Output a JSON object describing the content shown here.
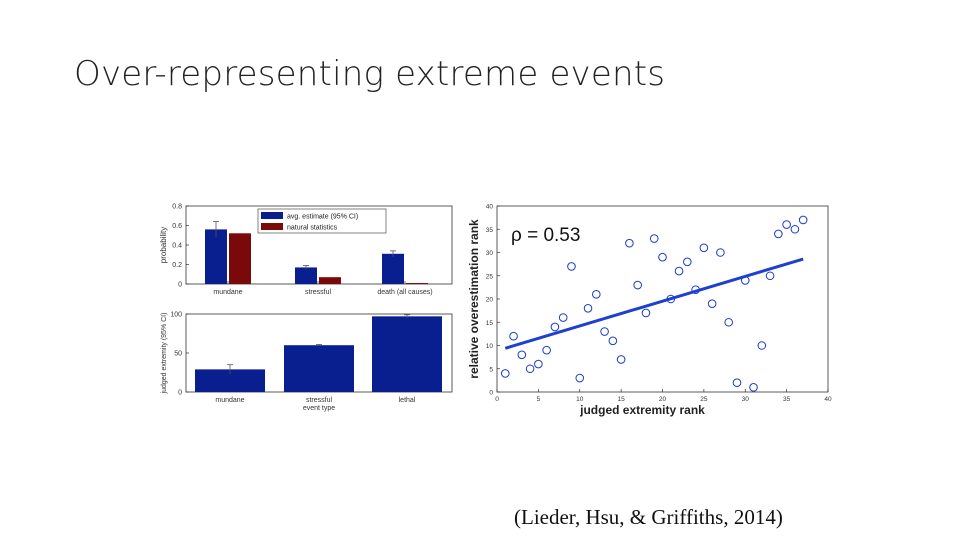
{
  "slide": {
    "title": "Over-representing extreme events",
    "citation": "(Lieder, Hsu, & Griffiths, 2014)"
  },
  "colors": {
    "blue": "#0a1f8f",
    "red": "#7a0a0a",
    "scatter": "#1a3ccc",
    "fit": "#1f3fd0"
  },
  "chart_data": [
    {
      "type": "bar",
      "categories": [
        "mundane",
        "stressful",
        "death (all causes)"
      ],
      "series": [
        {
          "name": "avg. estimate (95% CI)",
          "values": [
            0.56,
            0.17,
            0.31
          ],
          "ci": [
            0.08,
            0.02,
            0.03
          ]
        },
        {
          "name": "natural statistics",
          "values": [
            0.52,
            0.07,
            0.01
          ]
        }
      ],
      "ylabel": "probability",
      "ylim": [
        0,
        0.8
      ],
      "yticks": [
        "0",
        "0.2",
        "0.4",
        "0.6",
        "0.8"
      ],
      "legend": "top-right"
    },
    {
      "type": "bar",
      "categories": [
        "mundane",
        "stressful",
        "lethal"
      ],
      "series": [
        {
          "values": [
            29,
            60,
            97
          ],
          "ci": [
            6,
            1,
            2
          ]
        }
      ],
      "xlabel": "event type",
      "ylabel": "judged extremity (95% CI)",
      "ylim": [
        0,
        100
      ],
      "yticks": [
        "0",
        "50",
        "100"
      ]
    },
    {
      "type": "scatter",
      "annotation": "ρ = 0.53",
      "xlabel": "judged extremity rank",
      "ylabel": "relative overestimation rank",
      "xlim": [
        0,
        40
      ],
      "ylim": [
        0,
        40
      ],
      "xticks": [
        "0",
        "5",
        "10",
        "15",
        "20",
        "25",
        "30",
        "35",
        "40"
      ],
      "yticks": [
        "0",
        "5",
        "10",
        "15",
        "20",
        "25",
        "30",
        "35",
        "40"
      ],
      "points": [
        [
          1,
          4
        ],
        [
          2,
          12
        ],
        [
          3,
          8
        ],
        [
          4,
          5
        ],
        [
          5,
          6
        ],
        [
          6,
          9
        ],
        [
          7,
          14
        ],
        [
          8,
          16
        ],
        [
          9,
          27
        ],
        [
          10,
          3
        ],
        [
          11,
          18
        ],
        [
          12,
          21
        ],
        [
          13,
          13
        ],
        [
          14,
          11
        ],
        [
          15,
          7
        ],
        [
          16,
          32
        ],
        [
          17,
          23
        ],
        [
          18,
          17
        ],
        [
          19,
          33
        ],
        [
          20,
          29
        ],
        [
          21,
          20
        ],
        [
          22,
          26
        ],
        [
          23,
          28
        ],
        [
          24,
          22
        ],
        [
          25,
          31
        ],
        [
          26,
          19
        ],
        [
          27,
          30
        ],
        [
          28,
          15
        ],
        [
          29,
          2
        ],
        [
          30,
          24
        ],
        [
          31,
          1
        ],
        [
          32,
          10
        ],
        [
          33,
          25
        ],
        [
          34,
          34
        ],
        [
          35,
          36
        ],
        [
          36,
          35
        ],
        [
          37,
          37
        ]
      ],
      "fit": {
        "x": [
          1,
          37
        ],
        "y": [
          9.4,
          28.6
        ]
      }
    }
  ]
}
